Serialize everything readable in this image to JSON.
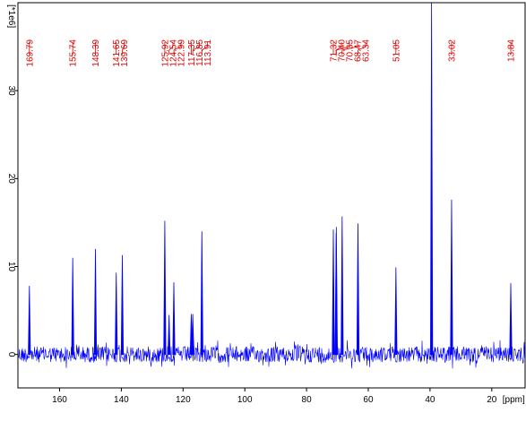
{
  "chart_data": {
    "type": "nmr",
    "xlabel": "[ppm]",
    "ylabel": "[*1e6]",
    "x": [
      169.79,
      155.74,
      148.39,
      141.65,
      139.69,
      125.92,
      124.54,
      122.99,
      117.35,
      116.85,
      113.91,
      71.32,
      70.4,
      70.35,
      68.47,
      63.34,
      51.05,
      39.5,
      33.02,
      13.84
    ],
    "peak_labels": [
      "169.79",
      "155.74",
      "148.39",
      "141.65",
      "139.69",
      "125.92",
      "124.54",
      "122.99",
      "117.35",
      "116.85",
      "113.91",
      "71.32",
      "70.40",
      "70.35",
      "68.47",
      "63.34",
      "51.05",
      null,
      "33.02",
      "13.84"
    ],
    "values": [
      7.8,
      11,
      12,
      9.3,
      11.3,
      15.2,
      4.5,
      8.2,
      4.6,
      4.6,
      14,
      14.2,
      13.8,
      14.5,
      15.7,
      14.9,
      9.9,
      40,
      17.6,
      8.1
    ],
    "color": "#0000ff",
    "label_color": "#e00000",
    "xlim": [
      173.5,
      9.2
    ],
    "ylim": [
      -3.8,
      40
    ],
    "xticks": [
      160,
      140,
      120,
      100,
      80,
      60,
      40,
      20
    ],
    "yticks": [
      0,
      10,
      20,
      30
    ]
  }
}
